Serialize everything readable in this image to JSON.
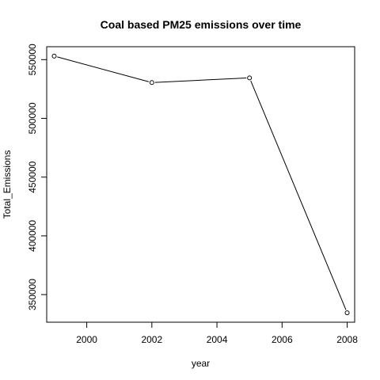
{
  "chart_data": {
    "type": "line",
    "title": "Coal based PM25 emissions over time",
    "xlabel": "year",
    "ylabel": "Total_Emissions",
    "x": [
      1999,
      2002,
      2005,
      2008
    ],
    "y": [
      553000,
      530500,
      534500,
      334500
    ],
    "xlim": [
      1998.77,
      2008.23
    ],
    "ylim": [
      326500,
      561000
    ],
    "xticks": [
      2000,
      2002,
      2004,
      2006,
      2008
    ],
    "xtick_labels": [
      "2000",
      "2002",
      "2004",
      "2006",
      "2008"
    ],
    "yticks": [
      350000,
      400000,
      450000,
      500000,
      550000
    ],
    "ytick_labels": [
      "350000",
      "400000",
      "450000",
      "500000",
      "550000"
    ],
    "marker": "open-circle",
    "grid": false,
    "line_color": "#000000",
    "frame_color": "#000000"
  }
}
